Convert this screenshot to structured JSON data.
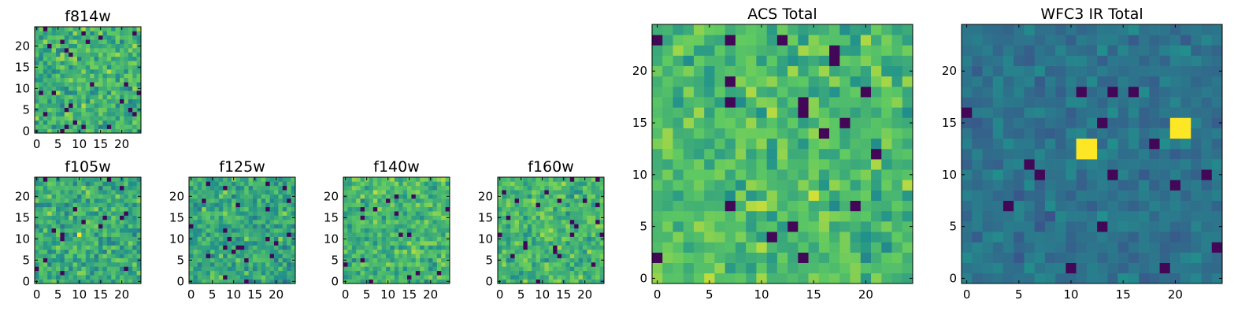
{
  "figure": {
    "description_free": true
  },
  "colormap": {
    "name": "viridis",
    "stops": [
      "#440154",
      "#3b528b",
      "#21918c",
      "#5ec962",
      "#fde725"
    ]
  },
  "chart_data": [
    {
      "id": "f814w",
      "type": "heatmap",
      "title": "f814w",
      "grid_size": [
        24,
        24
      ],
      "xlim": [
        -0.5,
        24.5
      ],
      "ylim": [
        -0.5,
        24.5
      ],
      "xticks": [
        0,
        5,
        10,
        15,
        20
      ],
      "yticks": [
        0,
        5,
        10,
        15,
        20
      ],
      "value_mean": 0.65,
      "value_spread": 0.3,
      "seed": 814,
      "hot_pixels": []
    },
    {
      "id": "f105w",
      "type": "heatmap",
      "title": "f105w",
      "grid_size": [
        24,
        24
      ],
      "xlim": [
        -0.5,
        24.5
      ],
      "ylim": [
        -0.5,
        24.5
      ],
      "xticks": [
        0,
        5,
        10,
        15,
        20
      ],
      "yticks": [
        0,
        5,
        10,
        15,
        20
      ],
      "value_mean": 0.62,
      "value_spread": 0.28,
      "seed": 105,
      "hot_pixels": [
        [
          10,
          11,
          1.0
        ]
      ]
    },
    {
      "id": "f125w",
      "type": "heatmap",
      "title": "f125w",
      "grid_size": [
        24,
        24
      ],
      "xlim": [
        -0.5,
        24.5
      ],
      "ylim": [
        -0.5,
        24.5
      ],
      "xticks": [
        0,
        5,
        10,
        15,
        20
      ],
      "yticks": [
        0,
        5,
        10,
        15,
        20
      ],
      "value_mean": 0.6,
      "value_spread": 0.28,
      "seed": 125,
      "hot_pixels": []
    },
    {
      "id": "f140w",
      "type": "heatmap",
      "title": "f140w",
      "grid_size": [
        24,
        24
      ],
      "xlim": [
        -0.5,
        24.5
      ],
      "ylim": [
        -0.5,
        24.5
      ],
      "xticks": [
        0,
        5,
        10,
        15,
        20
      ],
      "yticks": [
        0,
        5,
        10,
        15,
        20
      ],
      "value_mean": 0.66,
      "value_spread": 0.26,
      "seed": 140,
      "hot_pixels": []
    },
    {
      "id": "f160w",
      "type": "heatmap",
      "title": "f160w",
      "grid_size": [
        24,
        24
      ],
      "xlim": [
        -0.5,
        24.5
      ],
      "ylim": [
        -0.5,
        24.5
      ],
      "xticks": [
        0,
        5,
        10,
        15,
        20
      ],
      "yticks": [
        0,
        5,
        10,
        15,
        20
      ],
      "value_mean": 0.66,
      "value_spread": 0.26,
      "seed": 160,
      "hot_pixels": []
    },
    {
      "id": "acs-total",
      "type": "heatmap",
      "title": "ACS Total",
      "grid_size": [
        24,
        24
      ],
      "xlim": [
        -0.5,
        24.5
      ],
      "ylim": [
        -0.5,
        24.5
      ],
      "xticks": [
        0,
        5,
        10,
        15,
        20
      ],
      "yticks": [
        0,
        5,
        10,
        15,
        20
      ],
      "value_mean": 0.68,
      "value_spread": 0.28,
      "seed": 999,
      "hot_pixels": []
    },
    {
      "id": "wfc3-ir-total",
      "type": "heatmap",
      "title": "WFC3 IR Total",
      "grid_size": [
        24,
        24
      ],
      "xlim": [
        -0.5,
        24.5
      ],
      "ylim": [
        -0.5,
        24.5
      ],
      "xticks": [
        0,
        5,
        10,
        15,
        20
      ],
      "yticks": [
        0,
        5,
        10,
        15,
        20
      ],
      "value_mean": 0.38,
      "value_spread": 0.14,
      "seed": 777,
      "hot_pixels": [
        [
          11,
          12,
          1.0
        ],
        [
          12,
          12,
          1.0
        ],
        [
          11,
          13,
          1.0
        ],
        [
          12,
          13,
          1.0
        ],
        [
          20,
          14,
          1.0
        ],
        [
          21,
          14,
          1.0
        ],
        [
          20,
          15,
          1.0
        ],
        [
          21,
          15,
          1.0
        ]
      ]
    }
  ]
}
